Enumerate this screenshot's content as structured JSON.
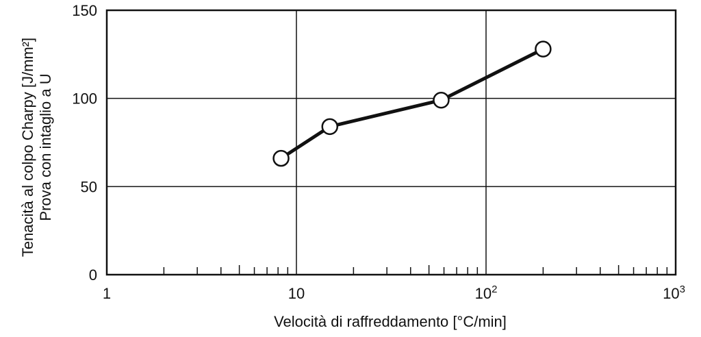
{
  "chart_data": {
    "type": "line",
    "title": "",
    "xlabel": "Velocità di raffreddamento [°C/min]",
    "ylabel_line1": "Tenacità al colpo Charpy [J/mm²]",
    "ylabel_line2": "Prova con intaglio a U",
    "x_scale": "log",
    "xlim": [
      1,
      1000
    ],
    "ylim": [
      0,
      150
    ],
    "x_ticks": [
      {
        "value": 1,
        "base": "1",
        "exp": ""
      },
      {
        "value": 10,
        "base": "10",
        "exp": ""
      },
      {
        "value": 100,
        "base": "10",
        "exp": "2"
      },
      {
        "value": 1000,
        "base": "10",
        "exp": "3"
      }
    ],
    "y_ticks": [
      {
        "value": 0,
        "label": "0"
      },
      {
        "value": 50,
        "label": "50"
      },
      {
        "value": 100,
        "label": "100"
      },
      {
        "value": 150,
        "label": "150"
      }
    ],
    "grid": true,
    "series": [
      {
        "x": [
          8.3,
          15,
          58,
          200
        ],
        "y": [
          66,
          84,
          99,
          128
        ]
      }
    ]
  }
}
